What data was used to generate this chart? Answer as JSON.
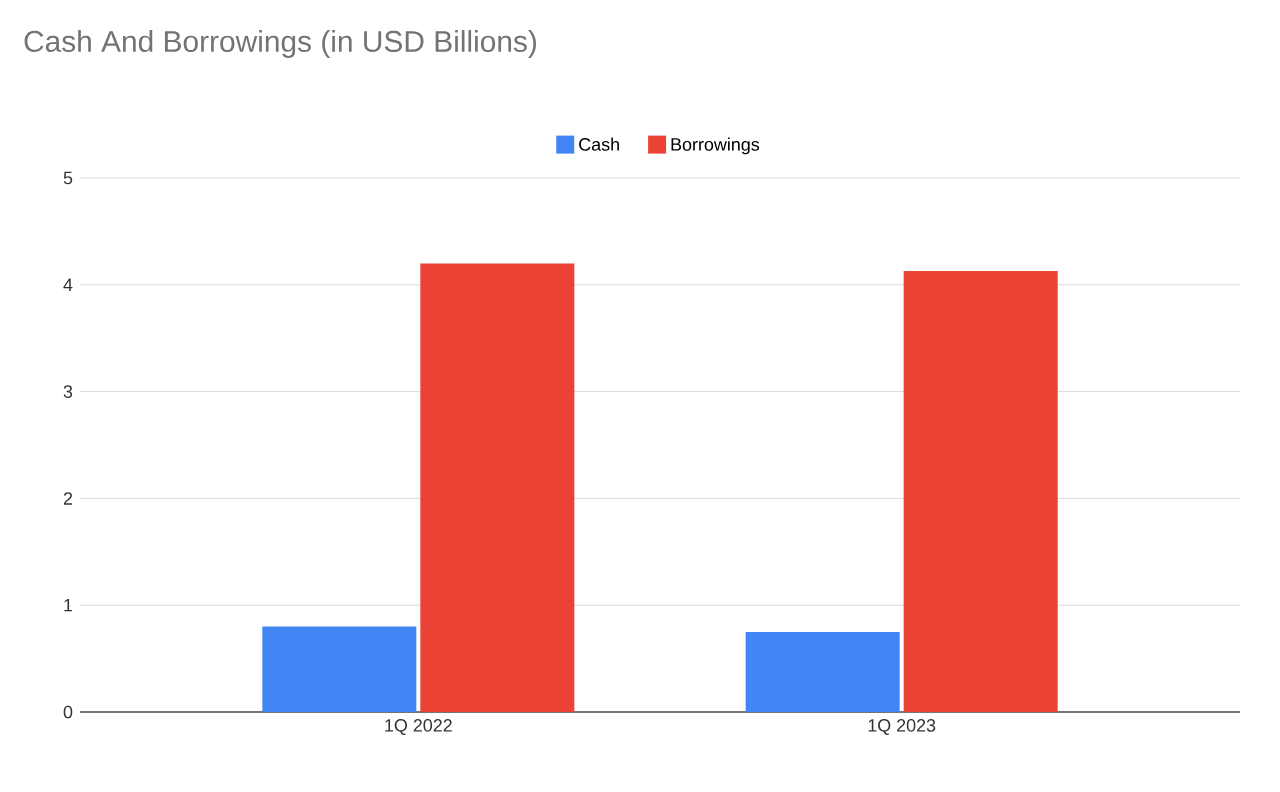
{
  "chart_data": {
    "type": "bar",
    "title": "Cash And Borrowings (in USD Billions)",
    "categories": [
      "1Q 2022",
      "1Q 2023"
    ],
    "series": [
      {
        "name": "Cash",
        "color": "#4285f4",
        "values": [
          0.8,
          0.75
        ]
      },
      {
        "name": "Borrowings",
        "color": "#ea4335",
        "values": [
          4.2,
          4.13
        ]
      }
    ],
    "ylim": [
      0,
      5
    ],
    "yticks": [
      0,
      1,
      2,
      3,
      4,
      5
    ],
    "grid": "y",
    "legend": "top"
  }
}
